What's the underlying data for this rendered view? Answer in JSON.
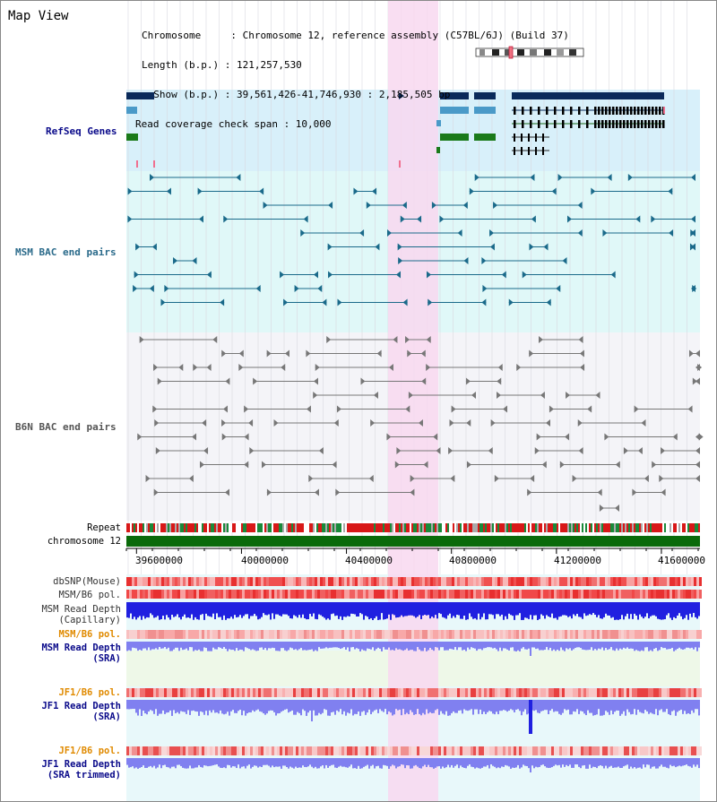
{
  "map_title": "Map View",
  "header": {
    "chromosome_line": "Chromosome     : Chromosome 12, reference assembly (C57BL/6J) (Build 37)",
    "length_line": "Length (b.p.) : 121,257,530",
    "show_line": "  Show (b.p.) : 39,561,426-41,746,930 : 2,185,505 bp",
    "read_coverage_line": "Read coverage check span : 10,000"
  },
  "tracks": {
    "refseq": "RefSeq Genes",
    "msm_bac": "MSM BAC end pairs",
    "b6n_bac": "B6N BAC end pairs",
    "repeat": "Repeat",
    "chromosome": "chromosome 12",
    "dbsnp": "dbSNP(Mouse)",
    "msm_b6_pol": "MSM/B6 pol.",
    "msm_depth_cap_1": "MSM Read Depth",
    "msm_depth_cap_2": "(Capillary)",
    "msm_b6_pol_2": "MSM/B6 pol.",
    "msm_depth_sra_1": "MSM Read Depth",
    "msm_depth_sra_2": "(SRA)",
    "jf1_b6_pol": "JF1/B6 pol.",
    "jf1_depth_sra_1": "JF1 Read Depth",
    "jf1_depth_sra_2": "(SRA)",
    "jf1_b6_pol_2": "JF1/B6 pol.",
    "jf1_depth_trim_1": "JF1 Read Depth",
    "jf1_depth_trim_2": "(SRA trimmed)"
  },
  "axis": {
    "ticks": [
      "39600000",
      "40000000",
      "40400000",
      "40800000",
      "41200000",
      "41600000"
    ],
    "tick_values": [
      39600000,
      40000000,
      40400000,
      40800000,
      41200000,
      41600000
    ],
    "range": [
      39561426,
      41746930
    ]
  },
  "colors": {
    "highlight": "#f8d8f0",
    "refseq_bg": "#d8f0fa",
    "msm_bg": "#e0f8f8",
    "b6n_bg": "#f4f4f8",
    "refseq_dark": "#0a2a5a",
    "refseq_mid": "#4a9ac8",
    "refseq_green": "#1a7a1a",
    "msm_line": "#1a6a8a",
    "b6n_line": "#777777",
    "chrom_green": "#0a6a0a",
    "label_blue": "#0a0a8a",
    "label_orange": "#e08a00",
    "label_teal": "#2a6a8a",
    "depth_blue": "#2020e0",
    "depth_light": "#8080f0"
  }
}
